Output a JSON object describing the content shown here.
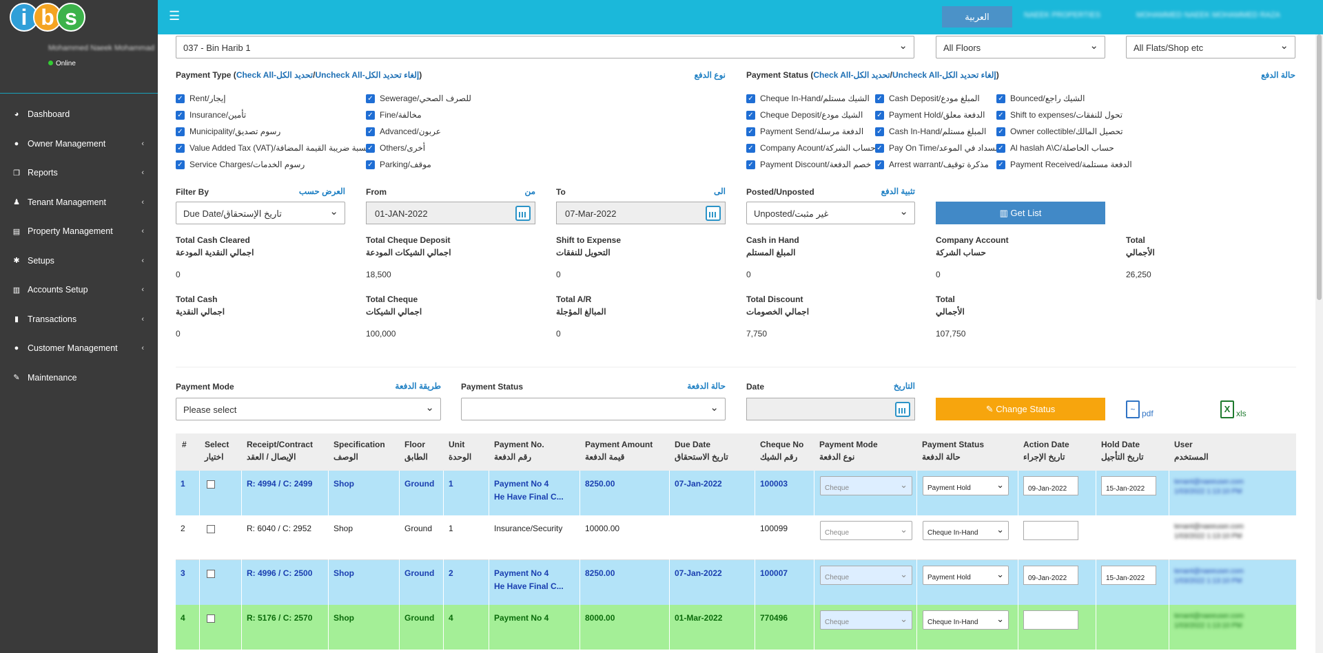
{
  "app": {
    "logo_letters": [
      "i",
      "b",
      "s"
    ],
    "user_name": "Mohammed Naeek Mohammad",
    "online": "Online",
    "lang_button": "العربية",
    "top_user1": "NAEEK PROPERTIES",
    "top_user2": "MOHAMMED NAEEK MOHAMMED RAZA"
  },
  "sidebar": {
    "items": [
      {
        "label": "Dashboard",
        "icon": "dashboard-icon",
        "glyph": "◕",
        "chevron": false
      },
      {
        "label": "Owner Management",
        "icon": "user-icon",
        "glyph": "●",
        "chevron": true
      },
      {
        "label": "Reports",
        "icon": "copy-icon",
        "glyph": "❐",
        "chevron": true
      },
      {
        "label": "Tenant Management",
        "icon": "male-icon",
        "glyph": "♟",
        "chevron": true
      },
      {
        "label": "Property Management",
        "icon": "building-icon",
        "glyph": "▤",
        "chevron": true
      },
      {
        "label": "Setups",
        "icon": "gear-icon",
        "glyph": "✱",
        "chevron": true
      },
      {
        "label": "Accounts Setup",
        "icon": "book-icon",
        "glyph": "▥",
        "chevron": true
      },
      {
        "label": "Transactions",
        "icon": "bar-chart-icon",
        "glyph": "▮",
        "chevron": true
      },
      {
        "label": "Customer Management",
        "icon": "user-icon",
        "glyph": "●",
        "chevron": true
      },
      {
        "label": "Maintenance",
        "icon": "wrench-icon",
        "glyph": "✎",
        "chevron": false
      }
    ]
  },
  "filters": {
    "building": "037 - Bin Harib 1",
    "floors": "All Floors",
    "flats": "All Flats/Shop etc"
  },
  "payment_type": {
    "title": "Payment Type (",
    "check_all": "Check All-تحديد الكل",
    "sep": "/",
    "uncheck_all": "Uncheck All-إلغاء تحديد الكل",
    "close": ")",
    "ar_title": "نوع الدفع",
    "col1": [
      "Rent/إيجار",
      "Insurance/تأمين",
      "Municipality/رسوم تصديق",
      "Value Added Tax (VAT)/نسبة ضريبة القيمة المضافة",
      "Service Charges/رسوم الخدمات"
    ],
    "col2": [
      "Sewerage/للصرف الصحي",
      "Fine/مخالفة",
      "Advanced/عربون",
      "Others/أخرى",
      "Parking/موقف"
    ]
  },
  "payment_status": {
    "title": "Payment Status (",
    "check_all": "Check All-تحديد الكل",
    "sep": "/",
    "uncheck_all": "Uncheck All-إلغاء تحديد الكل",
    "close": ")",
    "ar_title": "حالة الدفع",
    "col1": [
      "Cheque In-Hand/الشيك مستلم",
      "Cheque Deposit/الشيك مودع",
      "Payment Send/الدفعة مرسلة",
      "Company Acount/حساب الشركة",
      "Payment Discount/خصم الدفعة"
    ],
    "col2": [
      "Cash Deposit/المبلغ مودع",
      "Payment Hold/الدفعة معلق",
      "Cash In-Hand/المبلغ مستلم",
      "Pay On Time/السداد في الموعد",
      "Arrest warrant/مذكرة توقيف"
    ],
    "col3": [
      "Bounced/الشيك راجع",
      "Shift to expenses/تحول للنفقات",
      "Owner collectible/تحصيل المالك",
      "Al haslah A\\C/حساب الحاصلة",
      "Payment Received/الدفعة مستلمة"
    ]
  },
  "filter_by": {
    "label": "Filter By",
    "ar": "العرض حسب",
    "value": "Due Date/تاريخ الإستحقاق"
  },
  "from": {
    "label": "From",
    "ar": "من",
    "value": "01-JAN-2022"
  },
  "to": {
    "label": "To",
    "ar": "الى",
    "value": "07-Mar-2022"
  },
  "posted": {
    "label": "Posted/Unposted",
    "ar": "تثبية الدفع",
    "value": "Unposted/غير مثبت"
  },
  "get_list": "Get List",
  "stats1": [
    {
      "en": "Total Cash Cleared",
      "ar": "اجمالي النقدية المودعة",
      "value": "0"
    },
    {
      "en": "Total Cheque Deposit",
      "ar": "اجمالي الشيكات المودعة",
      "value": "18,500"
    },
    {
      "en": "Shift to Expense",
      "ar": "التحويل للنفقات",
      "value": "0"
    },
    {
      "en": "Cash in Hand",
      "ar": "المبلغ المستلم",
      "value": "0"
    },
    {
      "en": "Company Account",
      "ar": "حساب الشركة",
      "value": "0"
    },
    {
      "en": "Total",
      "ar": "الأجمالي",
      "value": "26,250"
    }
  ],
  "stats2": [
    {
      "en": "Total Cash",
      "ar": "اجمالي النقدية",
      "value": "0"
    },
    {
      "en": "Total Cheque",
      "ar": "اجمالي الشيكات",
      "value": "100,000"
    },
    {
      "en": "Total A/R",
      "ar": "المبالغ المؤجلة",
      "value": "0"
    },
    {
      "en": "Total Discount",
      "ar": "اجمالي الخصومات",
      "value": "7,750"
    },
    {
      "en": "Total",
      "ar": "الأجمالي",
      "value": "107,750"
    }
  ],
  "bulk": {
    "mode_label": "Payment Mode",
    "mode_ar": "طريقة الدفعة",
    "mode_value": "Please select",
    "status_label": "Payment Status",
    "status_ar": "حالة الدفعة",
    "status_value": "",
    "date_label": "Date",
    "date_ar": "التاريخ",
    "date_value": "",
    "change_status": "Change Status",
    "pdf": "pdf",
    "xls": "xls"
  },
  "table": {
    "headers": [
      [
        "#",
        ""
      ],
      [
        "Select",
        "اختيار"
      ],
      [
        "Receipt/Contract",
        "الإيصال / العقد"
      ],
      [
        "Specification",
        "الوصف"
      ],
      [
        "Floor",
        "الطابق"
      ],
      [
        "Unit",
        "الوحدة"
      ],
      [
        "Payment No.",
        "رقم الدفعة"
      ],
      [
        "Payment Amount",
        "قيمة الدفعة"
      ],
      [
        "Due Date",
        "تاريخ الاستحقاق"
      ],
      [
        "Cheque No",
        "رقم الشيك"
      ],
      [
        "Payment Mode",
        "نوع الدفعة"
      ],
      [
        "Payment Status",
        "حالة الدفعة"
      ],
      [
        "Action Date",
        "تاريخ الإجراء"
      ],
      [
        "Hold Date",
        "تاريخ التأجيل"
      ],
      [
        "User",
        "المستخدم"
      ]
    ],
    "rows": [
      {
        "n": "1",
        "r": "R: 4994 / C: 2499",
        "spec": "Shop",
        "floor": "Ground",
        "unit": "1",
        "pno": "Payment No 4",
        "pnote": "He Have Final C...",
        "amt": "8250.00",
        "due": "07-Jan-2022",
        "chq": "100003",
        "mode": "Cheque",
        "status": "Payment Hold",
        "action": "09-Jan-2022",
        "hold": "15-Jan-2022",
        "user": "tenant@naeeuser.com",
        "user2": "1/03/2022 1:13:10 PM",
        "style": "blue"
      },
      {
        "n": "2",
        "r": "R: 6040 / C: 2952",
        "spec": "Shop",
        "floor": "Ground",
        "unit": "1",
        "pno": "Insurance/Security",
        "pnote": "",
        "amt": "10000.00",
        "due": "",
        "chq": "100099",
        "mode": "Cheque",
        "status": "Cheque In-Hand",
        "action": "",
        "hold": "",
        "user": "tenant@naeeuser.com",
        "user2": "1/03/2022 1:13:10 PM",
        "style": "white"
      },
      {
        "n": "3",
        "r": "R: 4996 / C: 2500",
        "spec": "Shop",
        "floor": "Ground",
        "unit": "2",
        "pno": "Payment No 4",
        "pnote": "He Have Final C...",
        "amt": "8250.00",
        "due": "07-Jan-2022",
        "chq": "100007",
        "mode": "Cheque",
        "status": "Payment Hold",
        "action": "09-Jan-2022",
        "hold": "15-Jan-2022",
        "user": "tenant@naeeuser.com",
        "user2": "1/03/2022 1:13:10 PM",
        "style": "blue"
      },
      {
        "n": "4",
        "r": "R: 5176 / C: 2570",
        "spec": "Shop",
        "floor": "Ground",
        "unit": "4",
        "pno": "Payment No 4",
        "pnote": "",
        "amt": "8000.00",
        "due": "01-Mar-2022",
        "chq": "770496",
        "mode": "Cheque",
        "status": "Cheque In-Hand",
        "action": "",
        "hold": "",
        "user": "tenant@naeeuser.com",
        "user2": "1/03/2022 1:13:10 PM",
        "style": "green"
      }
    ]
  },
  "colors": {
    "topbar": "#1bb8da",
    "sidebar": "#3a3a3a",
    "get_list": "#4189c7",
    "change_status": "#f7a50d",
    "row_blue": "#b3e3f8",
    "row_green": "#a4ef97"
  }
}
